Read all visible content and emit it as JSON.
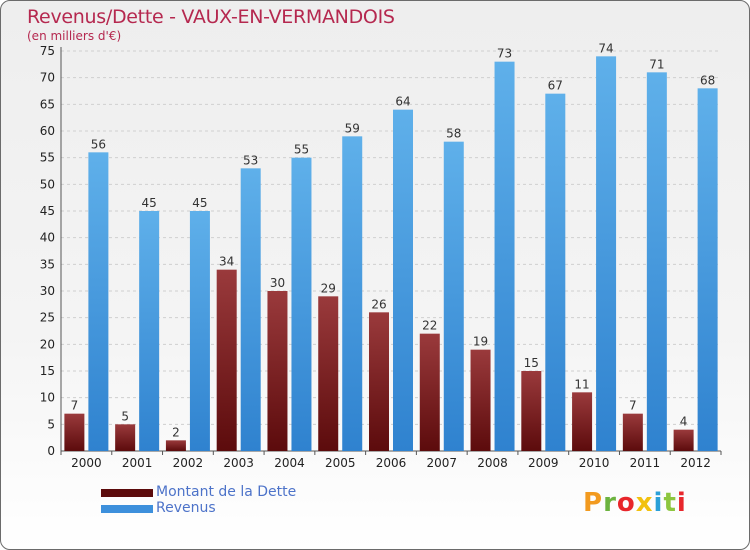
{
  "title": "Revenus/Dette - VAUX-EN-VERMANDOIS",
  "subtitle": "(en milliers d'€)",
  "logo": {
    "text": "Proxiti",
    "colors": [
      "#f29a1f",
      "#6cb33f",
      "#e8262b",
      "#f2c10f",
      "#2aa0d8",
      "#8dc63f",
      "#e8262b"
    ]
  },
  "colors": {
    "title": "#b5284f",
    "debt_top": "#9a3a3c",
    "debt_bottom": "#5c0b0c",
    "revenue_top": "#5fb0ea",
    "revenue_bottom": "#2f82cf",
    "legend_text": "#4d73c9"
  },
  "legend": [
    {
      "label": "Montant de la Dette",
      "color": "#5c0b0c"
    },
    {
      "label": "Revenus",
      "color": "#3d90dc"
    }
  ],
  "chart_data": {
    "type": "bar",
    "title": "Revenus/Dette - VAUX-EN-VERMANDOIS",
    "ylabel": "(en milliers d'€)",
    "xlabel": "",
    "categories": [
      "2000",
      "2001",
      "2002",
      "2003",
      "2004",
      "2005",
      "2006",
      "2007",
      "2008",
      "2009",
      "2010",
      "2011",
      "2012"
    ],
    "series": [
      {
        "name": "Montant de la Dette",
        "values": [
          7,
          5,
          2,
          34,
          30,
          29,
          26,
          22,
          19,
          15,
          11,
          7,
          4
        ]
      },
      {
        "name": "Revenus",
        "values": [
          56,
          45,
          45,
          53,
          55,
          59,
          64,
          58,
          73,
          67,
          74,
          71,
          68
        ]
      }
    ],
    "ylim": [
      0,
      75
    ],
    "yticks": [
      0,
      5,
      10,
      15,
      20,
      25,
      30,
      35,
      40,
      45,
      50,
      55,
      60,
      65,
      70,
      75
    ],
    "grid": true,
    "legend_position": "bottom-left"
  }
}
